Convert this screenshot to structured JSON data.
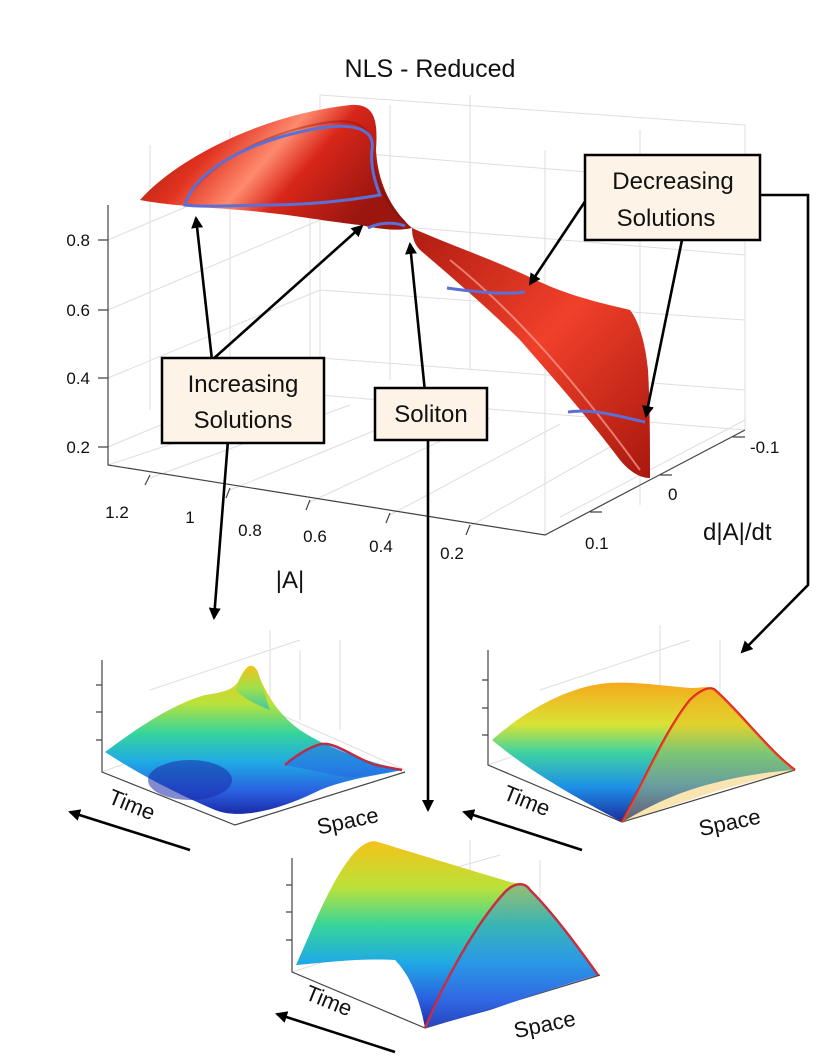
{
  "title": "NLS - Reduced",
  "axes": {
    "z_ticks": [
      "0.8",
      "0.6",
      "0.4",
      "0.2"
    ],
    "x_ticks": [
      "1.2",
      "1",
      "0.8",
      "0.6",
      "0.4",
      "0.2"
    ],
    "y_ticks": [
      "-0.1",
      "0",
      "0.1"
    ],
    "x_label": "|A|",
    "y_label": "d|A|/dt"
  },
  "callouts": {
    "increasing_line1": "Increasing",
    "increasing_line2": "Solutions",
    "soliton": "Soliton",
    "decreasing_line1": "Decreasing",
    "decreasing_line2": "Solutions"
  },
  "panels": {
    "left": {
      "time": "Time",
      "space": "Space"
    },
    "right": {
      "time": "Time",
      "space": "Space"
    },
    "bottom": {
      "time": "Time",
      "space": "Space"
    }
  },
  "colors": {
    "surface": "#d8261a",
    "curve": "#5b6fd6",
    "box_fill": "#fdf3e7",
    "profile_edge": "#e02020"
  }
}
